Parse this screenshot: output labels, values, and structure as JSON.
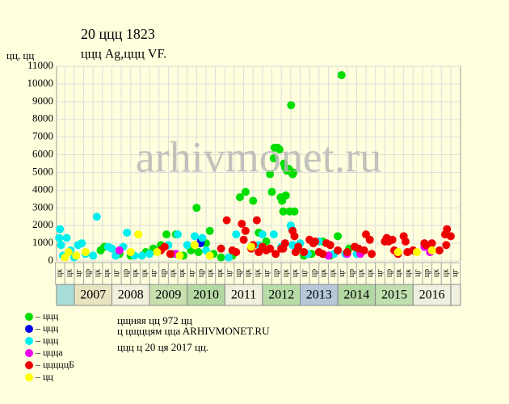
{
  "chart_data": {
    "type": "scatter",
    "title": "20 ццц 1823",
    "subtitle": "ццц Ag,ццц VF.",
    "y_label": "цц, цц",
    "watermark": "arhivmonet.ru",
    "notes": [
      "цщняя цц 972 цц",
      "ц цщццям ццa ARHIVMONET.RU",
      "ццц ц 20 ця 2017 цц."
    ],
    "xlim": [
      2006.53,
      2017.26
    ],
    "ylim": [
      0,
      11000
    ],
    "yticks": [
      0,
      1000,
      2000,
      3000,
      4000,
      5000,
      6000,
      7000,
      8000,
      9000,
      10000,
      11000
    ],
    "grid": true,
    "years": [
      "2007",
      "2008",
      "2009",
      "2010",
      "2011",
      "2012",
      "2013",
      "2014",
      "2015",
      "2016"
    ],
    "year_colors": [
      "#e8e4c0",
      "#f0f0dc",
      "#c8e0b0",
      "#b4d8a4",
      "#f0f0dc",
      "#b8dca8",
      "#b4c8d8",
      "#b4d8a4",
      "#c0e0b0",
      "#f0f0e0"
    ],
    "period_labels": [
      "цк",
      "цк",
      "цг",
      "цр",
      "цк",
      "цк",
      "цг",
      "цр",
      "цк",
      "цк",
      "цг",
      "цр",
      "цк",
      "цк",
      "цг",
      "цр",
      "цк",
      "цк",
      "цг",
      "цр",
      "цк",
      "цк",
      "цг",
      "цр",
      "цк",
      "цк",
      "цг",
      "цр",
      "цк",
      "цк",
      "цг",
      "цр",
      "цк",
      "цк",
      "цг",
      "цр",
      "цк",
      "цк",
      "цг",
      "цр",
      "цк",
      "цк",
      "цг"
    ],
    "series": [
      {
        "name": "– ццц",
        "color": "#00dd00",
        "x": [
          2007.7,
          2007.8,
          2008.2,
          2008.5,
          2008.9,
          2009.1,
          2009.3,
          2009.45,
          2009.6,
          2009.7,
          2009.9,
          2010.1,
          2010.25,
          2010.3,
          2010.5,
          2010.6,
          2010.7,
          2010.9,
          2011.2,
          2011.4,
          2011.55,
          2011.75,
          2011.9,
          2012.1,
          2012.2,
          2012.25,
          2012.3,
          2012.32,
          2012.4,
          2012.45,
          2012.48,
          2012.52,
          2012.55,
          2012.57,
          2012.6,
          2012.62,
          2012.65,
          2012.7,
          2012.72,
          2012.76,
          2012.8,
          2012.82,
          2012.85,
          2012.9,
          2013.1,
          2013.3,
          2013.6,
          2013.8,
          2014.0,
          2014.1,
          2014.3
        ],
        "values": [
          600,
          800,
          400,
          300,
          500,
          700,
          900,
          1500,
          400,
          1500,
          300,
          600,
          3000,
          500,
          1000,
          1700,
          400,
          200,
          300,
          3600,
          3900,
          3400,
          1600,
          1100,
          4900,
          3900,
          5800,
          6400,
          6400,
          6300,
          3600,
          3400,
          2800,
          5500,
          5300,
          3700,
          5100,
          5200,
          2800,
          8800,
          4900,
          5000,
          2800,
          600,
          300,
          400,
          1100,
          300,
          1400,
          10500,
          700
        ]
      },
      {
        "name": "– ццц",
        "color": "#0000ee",
        "x": [
          2010.35,
          2010.37
        ],
        "values": [
          1000,
          1150
        ]
      },
      {
        "name": "– ццц",
        "color": "#00eeee",
        "x": [
          2006.6,
          2006.62,
          2006.65,
          2006.7,
          2006.8,
          2006.9,
          2007.0,
          2007.1,
          2007.2,
          2007.3,
          2007.5,
          2007.6,
          2007.9,
          2008.0,
          2008.1,
          2008.3,
          2008.4,
          2008.6,
          2008.8,
          2009.0,
          2009.5,
          2009.75,
          2010.0,
          2010.2,
          2010.4,
          2010.5,
          2010.6,
          2011.1,
          2011.3,
          2011.9,
          2012.0,
          2012.3,
          2012.5,
          2012.75,
          2012.78,
          2012.8,
          2013.0,
          2013.2,
          2013.5,
          2013.9,
          2014.2,
          2014.5
        ],
        "values": [
          1300,
          1800,
          900,
          300,
          1300,
          600,
          200,
          900,
          1000,
          400,
          300,
          2500,
          800,
          700,
          300,
          800,
          1600,
          300,
          300,
          400,
          900,
          1500,
          900,
          1400,
          1300,
          600,
          300,
          200,
          1500,
          900,
          1500,
          1500,
          800,
          2000,
          1800,
          900,
          1000,
          400,
          1100,
          400,
          400,
          400
        ]
      },
      {
        "name": "– ццца",
        "color": "#ee00ee",
        "x": [
          2008.2,
          2009.7,
          2013.75,
          2014.25,
          2014.6,
          2016.3,
          2016.45
        ],
        "values": [
          600,
          400,
          300,
          400,
          400,
          800,
          500
        ]
      },
      {
        "name": "– цццццБ",
        "color": "#ee0000",
        "x": [
          2009.3,
          2009.4,
          2009.55,
          2010.9,
          2011.05,
          2011.2,
          2011.3,
          2011.45,
          2011.5,
          2011.55,
          2011.7,
          2011.75,
          2011.85,
          2011.9,
          2012.0,
          2012.1,
          2012.2,
          2012.35,
          2012.5,
          2012.55,
          2012.6,
          2012.8,
          2012.85,
          2012.88,
          2012.95,
          2013.1,
          2013.25,
          2013.35,
          2013.4,
          2013.5,
          2013.6,
          2013.7,
          2013.8,
          2014.0,
          2014.25,
          2014.45,
          2014.55,
          2014.7,
          2014.75,
          2014.85,
          2014.9,
          2015.25,
          2015.3,
          2015.35,
          2015.45,
          2015.5,
          2015.6,
          2015.75,
          2015.8,
          2015.85,
          2016.0,
          2016.3,
          2016.35,
          2016.5,
          2016.7,
          2016.85,
          2016.88,
          2016.9,
          2017.0
        ],
        "values": [
          600,
          800,
          400,
          700,
          2300,
          600,
          500,
          2100,
          1200,
          1700,
          700,
          900,
          2300,
          500,
          800,
          600,
          700,
          400,
          700,
          700,
          1000,
          1700,
          1400,
          500,
          800,
          500,
          1200,
          1000,
          1100,
          500,
          400,
          1000,
          900,
          600,
          500,
          800,
          700,
          600,
          1500,
          1200,
          400,
          1100,
          1300,
          1100,
          1200,
          600,
          400,
          1400,
          1100,
          500,
          600,
          1000,
          900,
          1000,
          600,
          1500,
          900,
          1800,
          1400
        ]
      },
      {
        "name": "– цц",
        "color": "#ffff00",
        "x": [
          2006.75,
          2006.85,
          2007.05,
          2007.3,
          2008.5,
          2008.7,
          2009.2,
          2009.8,
          2010.2,
          2010.6,
          2011.7,
          2015.6,
          2016.1,
          2016.5
        ],
        "values": [
          200,
          500,
          300,
          500,
          500,
          1500,
          500,
          300,
          900,
          300,
          800,
          500,
          500,
          600
        ]
      }
    ]
  }
}
